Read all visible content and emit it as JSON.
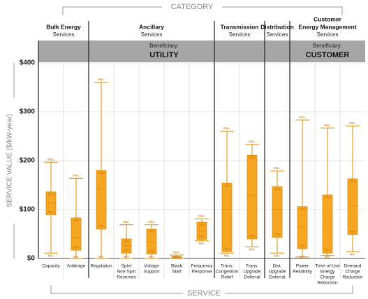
{
  "chart_data": {
    "type": "box",
    "category_title": "CATEGORY",
    "service_title": "SERVICE",
    "y_label": "SERVICE VALUE ($/kW-year)",
    "ylim": [
      0,
      400
    ],
    "yticks": [
      {
        "value": 0,
        "label": "$0"
      },
      {
        "value": 100,
        "label": "$100"
      },
      {
        "value": 200,
        "label": "$200"
      },
      {
        "value": 300,
        "label": "$300"
      },
      {
        "value": 400,
        "label": "$400"
      }
    ],
    "grid": true,
    "color": "#f5a623",
    "box_labels": {
      "max": "Max.",
      "q3": "75%",
      "q1": "25%",
      "min": "Min."
    },
    "beneficiaries": [
      {
        "label": "Beneficiary:",
        "name": "UTILITY",
        "groups": [
          {
            "name": [
              "Bulk Energy"
            ],
            "sub": "Services",
            "services": [
              {
                "name": [
                  "Capacity"
                ],
                "min": 11,
                "q1": 89,
                "median": 114,
                "q3": 136,
                "max": 197
              },
              {
                "name": [
                  "Arbitrage"
                ],
                "min": 0,
                "q1": 17,
                "median": 43,
                "q3": 83,
                "max": 164
              }
            ]
          },
          {
            "name": [
              "Ancillary"
            ],
            "sub": "Services",
            "services": [
              {
                "name": [
                  "Regulation"
                ],
                "min": 0,
                "q1": 60,
                "median": 143,
                "q3": 180,
                "max": 360
              },
              {
                "name": [
                  "Spin/",
                  "Non-Spin",
                  "Reserves"
                ],
                "min": 0,
                "q1": 11,
                "median": 26,
                "q3": 40,
                "max": 69
              },
              {
                "name": [
                  "Voltage",
                  "Support"
                ],
                "min": 0,
                "q1": 9,
                "median": 34,
                "q3": 60,
                "max": 69
              },
              {
                "name": [
                  "Black",
                  "Start"
                ],
                "min": 0,
                "q1": 1,
                "median": 3,
                "q3": 4,
                "max": 7
              },
              {
                "name": [
                  "Frequency",
                  "Response"
                ],
                "min": 36,
                "q1": 39,
                "median": 57,
                "q3": 74,
                "max": 81
              }
            ]
          },
          {
            "name": [
              "Transmission"
            ],
            "sub": "Services",
            "services": [
              {
                "name": [
                  "Trans.",
                  "Congestion",
                  "Relief"
                ],
                "min": 11,
                "q1": 14,
                "median": 100,
                "q3": 154,
                "max": 260
              },
              {
                "name": [
                  "Trans.",
                  "Upgrade",
                  "Deferral"
                ],
                "min": 24,
                "q1": 40,
                "median": 129,
                "q3": 211,
                "max": 233
              }
            ]
          },
          {
            "name": [
              "Distribution"
            ],
            "sub": "Services",
            "services": [
              {
                "name": [
                  "Dist.",
                  "Upgrade",
                  "Deferral"
                ],
                "min": 11,
                "q1": 43,
                "median": 100,
                "q3": 147,
                "max": 179
              }
            ]
          }
        ]
      },
      {
        "label": "Beneficiary:",
        "name": "CUSTOMER",
        "groups": [
          {
            "name": [
              "Customer",
              "Energy Management"
            ],
            "sub": "Services",
            "services": [
              {
                "name": [
                  "Power",
                  "Reliability"
                ],
                "min": 3,
                "q1": 20,
                "median": 64,
                "q3": 106,
                "max": 283
              },
              {
                "name": [
                  "Time-of-Use",
                  "Energy",
                  "Charge",
                  "Reduction"
                ],
                "min": 6,
                "q1": 11,
                "median": 71,
                "q3": 130,
                "max": 267
              },
              {
                "name": [
                  "Demand",
                  "Charge",
                  "Reduction"
                ],
                "min": 14,
                "q1": 49,
                "median": 107,
                "q3": 163,
                "max": 271
              }
            ]
          }
        ]
      }
    ]
  }
}
